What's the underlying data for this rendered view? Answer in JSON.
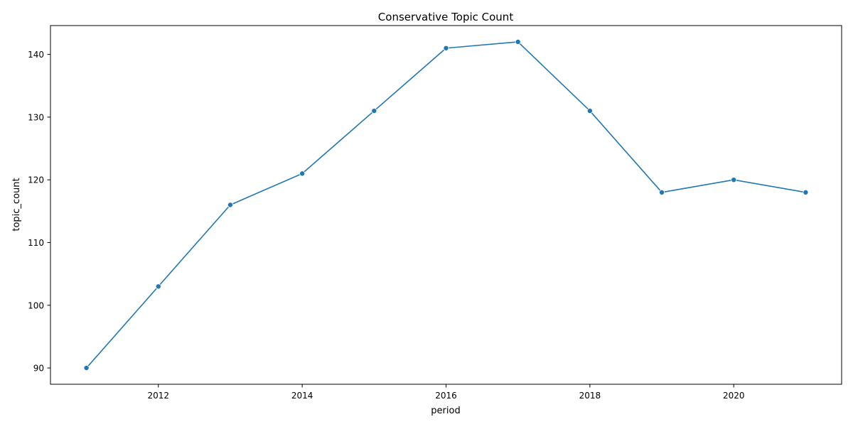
{
  "chart_data": {
    "type": "line",
    "title": "Conservative Topic Count",
    "xlabel": "period",
    "ylabel": "topic_count",
    "grid": false,
    "xlim": [
      2010.5,
      2021.5
    ],
    "ylim": [
      87.4,
      144.6
    ],
    "xticks": [
      2012,
      2014,
      2016,
      2018,
      2020
    ],
    "yticks": [
      90,
      100,
      110,
      120,
      130,
      140
    ],
    "series": [
      {
        "color": "#1f77b4",
        "marker": "circle",
        "x": [
          2011,
          2012,
          2013,
          2014,
          2015,
          2016,
          2017,
          2018,
          2019,
          2020,
          2021
        ],
        "y": [
          90,
          103,
          116,
          121,
          131,
          141,
          142,
          131,
          118,
          120,
          118
        ]
      }
    ]
  }
}
